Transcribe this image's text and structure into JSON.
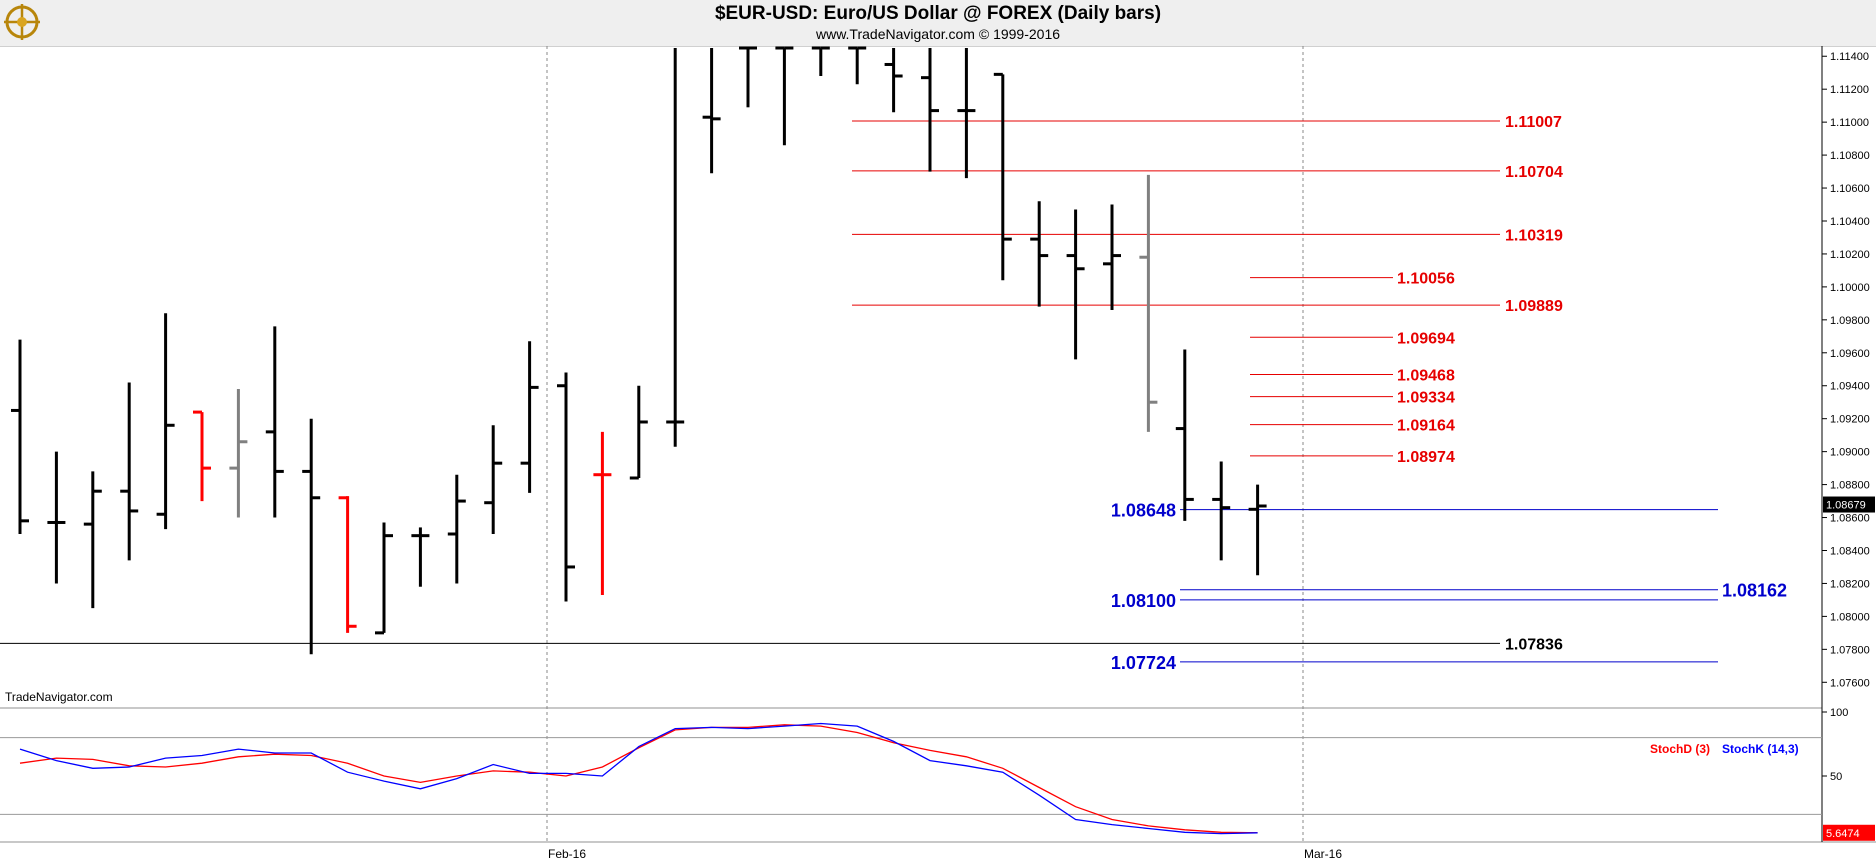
{
  "header": {
    "title": "$EUR-USD:  Euro/US Dollar @ FOREX  (Daily bars)",
    "subtitle": "www.TradeNavigator.com © 1999-2016",
    "watermark": "TradeNavigator.com"
  },
  "chart_data": [
    {
      "type": "ohlc",
      "title": "$EUR-USD:  Euro/US Dollar @ FOREX  (Daily bars)",
      "x_ticks": [
        "Feb-16",
        "Mar-16"
      ],
      "y_ticks": [
        "1.07600",
        "1.07800",
        "1.08000",
        "1.08200",
        "1.08400",
        "1.08600",
        "1.08800",
        "1.09000",
        "1.09200",
        "1.09400",
        "1.09600",
        "1.09800",
        "1.10000",
        "1.10200",
        "1.10400",
        "1.10600",
        "1.10800",
        "1.11000",
        "1.11200",
        "1.11400"
      ],
      "ylim": [
        1.0745,
        1.1145
      ],
      "last_price": "1.08679",
      "colors": {
        "up": "#000000",
        "down": "#000000",
        "highlight_red": "#ff0000",
        "highlight_gray": "#808080",
        "level_red": "#e60000",
        "level_blue": "#0000cc",
        "level_black": "#000000"
      },
      "bars": [
        {
          "o": 1.0925,
          "h": 1.0968,
          "l": 1.085,
          "c": 1.0858,
          "color": "black"
        },
        {
          "o": 1.0857,
          "h": 1.09,
          "l": 1.082,
          "c": 1.0857,
          "color": "black"
        },
        {
          "o": 1.0856,
          "h": 1.0888,
          "l": 1.0805,
          "c": 1.0876,
          "color": "black"
        },
        {
          "o": 1.0876,
          "h": 1.0942,
          "l": 1.0834,
          "c": 1.0864,
          "color": "black"
        },
        {
          "o": 1.0862,
          "h": 1.0984,
          "l": 1.0853,
          "c": 1.0916,
          "color": "black"
        },
        {
          "o": 1.0924,
          "h": 1.0924,
          "l": 1.087,
          "c": 1.089,
          "color": "red"
        },
        {
          "o": 1.089,
          "h": 1.0938,
          "l": 1.086,
          "c": 1.0906,
          "color": "gray"
        },
        {
          "o": 1.0912,
          "h": 1.0976,
          "l": 1.086,
          "c": 1.0888,
          "color": "black"
        },
        {
          "o": 1.0888,
          "h": 1.092,
          "l": 1.0777,
          "c": 1.0872,
          "color": "black"
        },
        {
          "o": 1.0872,
          "h": 1.0873,
          "l": 1.079,
          "c": 1.0794,
          "color": "red"
        },
        {
          "o": 1.079,
          "h": 1.0857,
          "l": 1.079,
          "c": 1.0849,
          "color": "black"
        },
        {
          "o": 1.0849,
          "h": 1.0854,
          "l": 1.0818,
          "c": 1.0849,
          "color": "black"
        },
        {
          "o": 1.085,
          "h": 1.0886,
          "l": 1.082,
          "c": 1.087,
          "color": "black"
        },
        {
          "o": 1.0869,
          "h": 1.0916,
          "l": 1.085,
          "c": 1.0893,
          "color": "black"
        },
        {
          "o": 1.0893,
          "h": 1.0967,
          "l": 1.0875,
          "c": 1.0939,
          "color": "black"
        },
        {
          "o": 1.094,
          "h": 1.0948,
          "l": 1.0809,
          "c": 1.083,
          "color": "black"
        },
        {
          "o": 1.0886,
          "h": 1.0912,
          "l": 1.0813,
          "c": 1.0886,
          "color": "red"
        },
        {
          "o": 1.0884,
          "h": 1.094,
          "l": 1.0884,
          "c": 1.0918,
          "color": "black"
        },
        {
          "o": 1.0918,
          "h": 1.1145,
          "l": 1.0903,
          "c": 1.0918,
          "color": "black"
        },
        {
          "o": 1.1103,
          "h": 1.1145,
          "l": 1.1069,
          "c": 1.1102,
          "color": "black"
        },
        {
          "o": 1.1145,
          "h": 1.1145,
          "l": 1.1109,
          "c": 1.1145,
          "color": "black"
        },
        {
          "o": 1.1145,
          "h": 1.1145,
          "l": 1.1086,
          "c": 1.1145,
          "color": "black"
        },
        {
          "o": 1.1145,
          "h": 1.1145,
          "l": 1.1128,
          "c": 1.1145,
          "color": "black"
        },
        {
          "o": 1.1145,
          "h": 1.1145,
          "l": 1.1123,
          "c": 1.1145,
          "color": "black"
        },
        {
          "o": 1.1135,
          "h": 1.1145,
          "l": 1.1106,
          "c": 1.1128,
          "color": "black"
        },
        {
          "o": 1.1127,
          "h": 1.1145,
          "l": 1.107,
          "c": 1.1107,
          "color": "black"
        },
        {
          "o": 1.1107,
          "h": 1.1145,
          "l": 1.1066,
          "c": 1.1107,
          "color": "black"
        },
        {
          "o": 1.1129,
          "h": 1.1129,
          "l": 1.1004,
          "c": 1.1029,
          "color": "black"
        },
        {
          "o": 1.1029,
          "h": 1.1052,
          "l": 1.0988,
          "c": 1.1019,
          "color": "black"
        },
        {
          "o": 1.1019,
          "h": 1.1047,
          "l": 1.0956,
          "c": 1.1011,
          "color": "black"
        },
        {
          "o": 1.1014,
          "h": 1.105,
          "l": 1.0986,
          "c": 1.1019,
          "color": "black"
        },
        {
          "o": 1.1018,
          "h": 1.1068,
          "l": 1.0912,
          "c": 1.093,
          "color": "gray"
        },
        {
          "o": 1.0914,
          "h": 1.0962,
          "l": 1.0858,
          "c": 1.0871,
          "color": "black"
        },
        {
          "o": 1.0871,
          "h": 1.0894,
          "l": 1.0834,
          "c": 1.0866,
          "color": "black"
        },
        {
          "o": 1.0865,
          "h": 1.088,
          "l": 1.0825,
          "c": 1.0867,
          "color": "black"
        }
      ],
      "levels": [
        {
          "value": 1.11007,
          "label": "1.11007",
          "color": "red"
        },
        {
          "value": 1.10704,
          "label": "1.10704",
          "color": "red"
        },
        {
          "value": 1.10319,
          "label": "1.10319",
          "color": "red"
        },
        {
          "value": 1.10056,
          "label": "1.10056",
          "color": "red"
        },
        {
          "value": 1.09889,
          "label": "1.09889",
          "color": "red"
        },
        {
          "value": 1.09694,
          "label": "1.09694",
          "color": "red"
        },
        {
          "value": 1.09468,
          "label": "1.09468",
          "color": "red"
        },
        {
          "value": 1.09334,
          "label": "1.09334",
          "color": "red"
        },
        {
          "value": 1.09164,
          "label": "1.09164",
          "color": "red"
        },
        {
          "value": 1.08974,
          "label": "1.08974",
          "color": "red"
        },
        {
          "value": 1.08648,
          "label": "1.08648",
          "color": "blue"
        },
        {
          "value": 1.08162,
          "label": "1.08162",
          "color": "blue"
        },
        {
          "value": 1.081,
          "label": "1.08100",
          "color": "blue"
        },
        {
          "value": 1.07836,
          "label": "1.07836",
          "color": "black"
        },
        {
          "value": 1.07724,
          "label": "1.07724",
          "color": "blue"
        }
      ]
    },
    {
      "type": "line",
      "y_ticks": [
        "100",
        "50"
      ],
      "ylim": [
        0,
        100
      ],
      "reference_lines": [
        80,
        20
      ],
      "last_value": "5.6474",
      "series": [
        {
          "name": "StochD (3)",
          "color": "#ff0000",
          "values": [
            60,
            64,
            63,
            58,
            57,
            60,
            65,
            67,
            66,
            60,
            50,
            45,
            50,
            54,
            53,
            50,
            57,
            72,
            86,
            88,
            88,
            90,
            89,
            84,
            76,
            70,
            65,
            56,
            41,
            26,
            16,
            11,
            8,
            6,
            5.6
          ]
        },
        {
          "name": "StochK (14,3)",
          "color": "#0000ff",
          "values": [
            71,
            62,
            56,
            57,
            64,
            66,
            71,
            68,
            68,
            53,
            46,
            40,
            48,
            59,
            52,
            52,
            50,
            73,
            87,
            88,
            87,
            89,
            91,
            89,
            77,
            62,
            58,
            53,
            35,
            16,
            12,
            9,
            6,
            5,
            5.6
          ]
        }
      ]
    }
  ]
}
